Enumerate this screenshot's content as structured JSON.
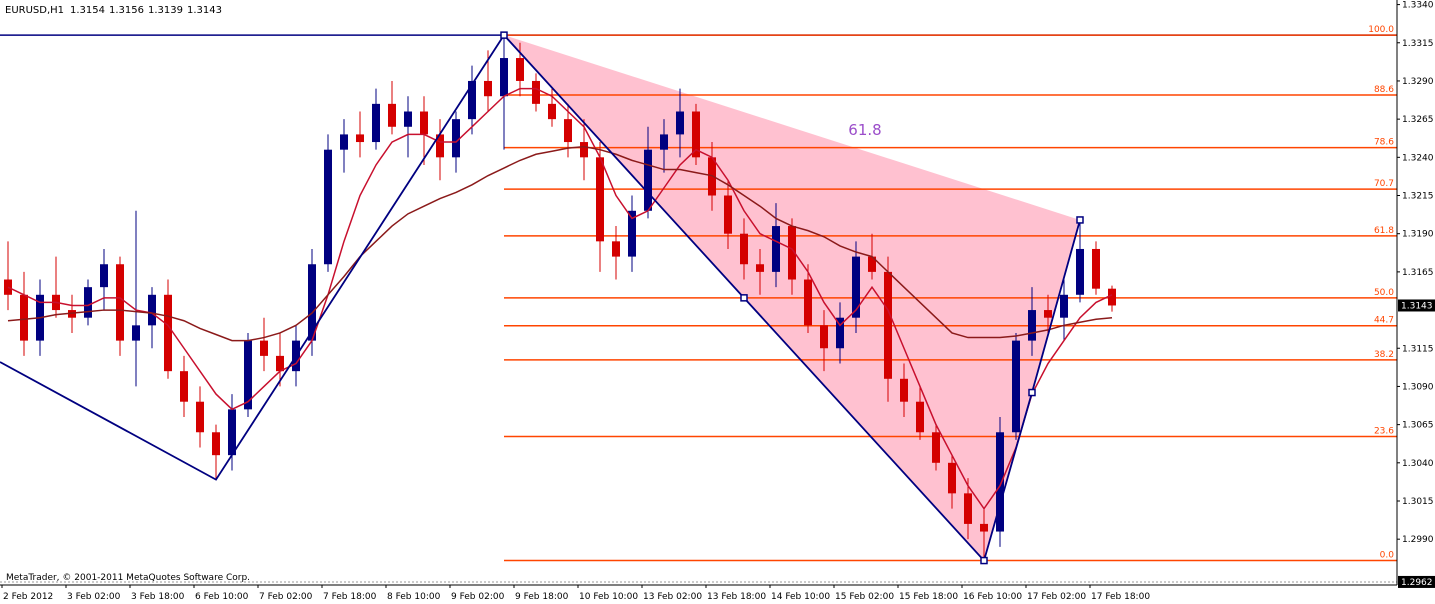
{
  "chart_data": {
    "type": "candlestick",
    "title": "EURUSD,H1",
    "copyright": "MetaTrader, © 2001-2011 MetaQuotes Software Corp.",
    "annotation": "61.8",
    "categories": [
      "2 Feb 2012",
      null,
      null,
      null,
      "3 Feb 02:00",
      null,
      null,
      null,
      "3 Feb 18:00",
      null,
      null,
      null,
      "6 Feb 10:00",
      null,
      null,
      null,
      "7 Feb 02:00",
      null,
      null,
      null,
      "7 Feb 18:00",
      null,
      null,
      null,
      "8 Feb 10:00",
      null,
      null,
      null,
      "9 Feb 02:00",
      null,
      null,
      null,
      "9 Feb 18:00",
      null,
      null,
      null,
      "10 Feb 10:00",
      null,
      null,
      null,
      "13 Feb 02:00",
      null,
      null,
      null,
      "13 Feb 18:00",
      null,
      null,
      null,
      "14 Feb 10:00",
      null,
      null,
      null,
      "15 Feb 02:00",
      null,
      null,
      null,
      "15 Feb 18:00",
      null,
      null,
      null,
      "16 Feb 10:00",
      null,
      null,
      null,
      "17 Feb 02:00",
      null,
      null,
      null,
      "17 Feb 18:00",
      null
    ],
    "candles": [
      [
        1.316,
        1.3185,
        1.314,
        1.315
      ],
      [
        1.315,
        1.3165,
        1.311,
        1.312
      ],
      [
        1.312,
        1.316,
        1.311,
        1.315
      ],
      [
        1.315,
        1.3175,
        1.3135,
        1.314
      ],
      [
        1.314,
        1.315,
        1.3125,
        1.3135
      ],
      [
        1.3135,
        1.316,
        1.313,
        1.3155
      ],
      [
        1.3155,
        1.318,
        1.314,
        1.317
      ],
      [
        1.317,
        1.3175,
        1.311,
        1.312
      ],
      [
        1.312,
        1.3205,
        1.309,
        1.313
      ],
      [
        1.313,
        1.3155,
        1.3115,
        1.315
      ],
      [
        1.315,
        1.316,
        1.3095,
        1.31
      ],
      [
        1.31,
        1.311,
        1.307,
        1.308
      ],
      [
        1.308,
        1.309,
        1.305,
        1.306
      ],
      [
        1.306,
        1.3065,
        1.3029,
        1.3045
      ],
      [
        1.3045,
        1.3085,
        1.3035,
        1.3075
      ],
      [
        1.3075,
        1.3125,
        1.307,
        1.312
      ],
      [
        1.312,
        1.3135,
        1.31,
        1.311
      ],
      [
        1.311,
        1.3125,
        1.309,
        1.31
      ],
      [
        1.31,
        1.313,
        1.309,
        1.312
      ],
      [
        1.312,
        1.318,
        1.311,
        1.317
      ],
      [
        1.317,
        1.3255,
        1.3165,
        1.3245
      ],
      [
        1.3245,
        1.3265,
        1.323,
        1.3255
      ],
      [
        1.3255,
        1.327,
        1.324,
        1.325
      ],
      [
        1.325,
        1.3285,
        1.3245,
        1.3275
      ],
      [
        1.3275,
        1.329,
        1.3255,
        1.326
      ],
      [
        1.326,
        1.328,
        1.324,
        1.327
      ],
      [
        1.327,
        1.328,
        1.3235,
        1.3255
      ],
      [
        1.3255,
        1.3265,
        1.3225,
        1.324
      ],
      [
        1.324,
        1.327,
        1.323,
        1.3265
      ],
      [
        1.3265,
        1.33,
        1.3255,
        1.329
      ],
      [
        1.329,
        1.331,
        1.327,
        1.328
      ],
      [
        1.328,
        1.332,
        1.3245,
        1.3305
      ],
      [
        1.3305,
        1.3315,
        1.328,
        1.329
      ],
      [
        1.329,
        1.3295,
        1.327,
        1.3275
      ],
      [
        1.3275,
        1.3285,
        1.326,
        1.3265
      ],
      [
        1.3265,
        1.3275,
        1.324,
        1.325
      ],
      [
        1.325,
        1.3265,
        1.3225,
        1.324
      ],
      [
        1.324,
        1.325,
        1.3165,
        1.3185
      ],
      [
        1.3185,
        1.3195,
        1.316,
        1.3175
      ],
      [
        1.3175,
        1.3215,
        1.3165,
        1.3205
      ],
      [
        1.3205,
        1.326,
        1.32,
        1.3245
      ],
      [
        1.3245,
        1.3265,
        1.323,
        1.3255
      ],
      [
        1.3255,
        1.3285,
        1.324,
        1.327
      ],
      [
        1.327,
        1.3275,
        1.3235,
        1.324
      ],
      [
        1.324,
        1.325,
        1.3205,
        1.3215
      ],
      [
        1.3215,
        1.3225,
        1.318,
        1.319
      ],
      [
        1.319,
        1.32,
        1.316,
        1.317
      ],
      [
        1.317,
        1.318,
        1.315,
        1.3165
      ],
      [
        1.3165,
        1.321,
        1.3155,
        1.3195
      ],
      [
        1.3195,
        1.32,
        1.315,
        1.316
      ],
      [
        1.316,
        1.317,
        1.3125,
        1.313
      ],
      [
        1.313,
        1.314,
        1.31,
        1.3115
      ],
      [
        1.3115,
        1.3145,
        1.3105,
        1.3135
      ],
      [
        1.3135,
        1.3185,
        1.3125,
        1.3175
      ],
      [
        1.3175,
        1.319,
        1.316,
        1.3165
      ],
      [
        1.3165,
        1.3175,
        1.308,
        1.3095
      ],
      [
        1.3095,
        1.3105,
        1.307,
        1.308
      ],
      [
        1.308,
        1.309,
        1.3055,
        1.306
      ],
      [
        1.306,
        1.3065,
        1.3035,
        1.304
      ],
      [
        1.304,
        1.3045,
        1.301,
        1.302
      ],
      [
        1.302,
        1.303,
        1.299,
        1.3
      ],
      [
        1.3,
        1.301,
        1.2976,
        1.2995
      ],
      [
        1.2995,
        1.307,
        1.2985,
        1.306
      ],
      [
        1.306,
        1.3125,
        1.3055,
        1.312
      ],
      [
        1.312,
        1.3155,
        1.311,
        1.314
      ],
      [
        1.314,
        1.315,
        1.3125,
        1.3135
      ],
      [
        1.3135,
        1.316,
        1.312,
        1.315
      ],
      [
        1.315,
        1.3199,
        1.3145,
        1.318
      ],
      [
        1.318,
        1.3185,
        1.315,
        1.3154
      ],
      [
        1.3154,
        1.3156,
        1.3139,
        1.3143
      ]
    ],
    "bull_color": "#000080",
    "bear_color": "#d40000",
    "series": [
      {
        "color": "#c8102e",
        "values": [
          1.3155,
          1.315,
          1.3145,
          1.3145,
          1.3143,
          1.3143,
          1.3148,
          1.3148,
          1.314,
          1.3138,
          1.313,
          1.3115,
          1.31,
          1.3085,
          1.3075,
          1.308,
          1.309,
          1.31,
          1.3105,
          1.312,
          1.315,
          1.3185,
          1.3215,
          1.3235,
          1.325,
          1.3255,
          1.3255,
          1.325,
          1.325,
          1.326,
          1.327,
          1.328,
          1.3285,
          1.3285,
          1.328,
          1.327,
          1.326,
          1.324,
          1.3215,
          1.32,
          1.3205,
          1.322,
          1.3235,
          1.3245,
          1.324,
          1.3225,
          1.3205,
          1.319,
          1.3185,
          1.318,
          1.3165,
          1.3145,
          1.313,
          1.314,
          1.3155,
          1.314,
          1.3115,
          1.309,
          1.3065,
          1.3045,
          1.3025,
          1.301,
          1.3025,
          1.305,
          1.3085,
          1.3105,
          1.312,
          1.3135,
          1.3145,
          1.315
        ]
      },
      {
        "color": "#8b1a1a",
        "values": [
          1.3133,
          1.3134,
          1.3135,
          1.3137,
          1.3138,
          1.3139,
          1.314,
          1.314,
          1.3139,
          1.3138,
          1.3136,
          1.3133,
          1.3128,
          1.3124,
          1.312,
          1.312,
          1.3122,
          1.3125,
          1.313,
          1.3138,
          1.315,
          1.3162,
          1.3175,
          1.3185,
          1.3195,
          1.3203,
          1.3208,
          1.3213,
          1.3217,
          1.3222,
          1.3228,
          1.3233,
          1.3238,
          1.3242,
          1.3244,
          1.3246,
          1.3247,
          1.3245,
          1.3242,
          1.3238,
          1.3235,
          1.3232,
          1.3232,
          1.323,
          1.3228,
          1.3222,
          1.3215,
          1.3208,
          1.32,
          1.3195,
          1.3192,
          1.3188,
          1.3182,
          1.3178,
          1.3175,
          1.3165,
          1.3155,
          1.3145,
          1.3135,
          1.3125,
          1.3122,
          1.3122,
          1.3122,
          1.3123,
          1.3125,
          1.3127,
          1.313,
          1.3132,
          1.3134,
          1.3135
        ]
      }
    ],
    "pattern": {
      "color": "#000080",
      "fill": "#ffb6c8",
      "x": [
        0,
        13,
        31,
        46,
        61,
        64,
        67
      ],
      "prices": [
        1.3106,
        1.3029,
        1.332,
        1.3148,
        1.2976,
        1.3086,
        1.3199
      ]
    },
    "fibonacci": {
      "color": "#ff4500",
      "from": 1.332,
      "to": 1.2976,
      "levels": [
        {
          "value": 100,
          "label": "100.0"
        },
        88.6,
        78.6,
        70.7,
        61.8,
        {
          "value": 50,
          "label": "50.0"
        },
        44.7,
        38.2,
        23.6,
        {
          "value": 0,
          "label": "0.0"
        }
      ]
    },
    "ylim": [
      1.296,
      1.3343
    ],
    "yticks": [
      {
        "value": 1.334,
        "label": "1.3340"
      },
      1.3315,
      {
        "value": 1.329,
        "label": "1.3290"
      },
      1.3265,
      {
        "value": 1.324,
        "label": "1.3240"
      },
      1.3215,
      {
        "value": 1.319,
        "label": "1.3190"
      },
      1.3165,
      1.3115,
      {
        "value": 1.309,
        "label": "1.3090"
      },
      1.3065,
      {
        "value": 1.304,
        "label": "1.3040"
      },
      1.3015,
      {
        "value": 1.299,
        "label": "1.2990"
      }
    ],
    "last_price": 1.3143,
    "ask_line": 1.2962
  }
}
